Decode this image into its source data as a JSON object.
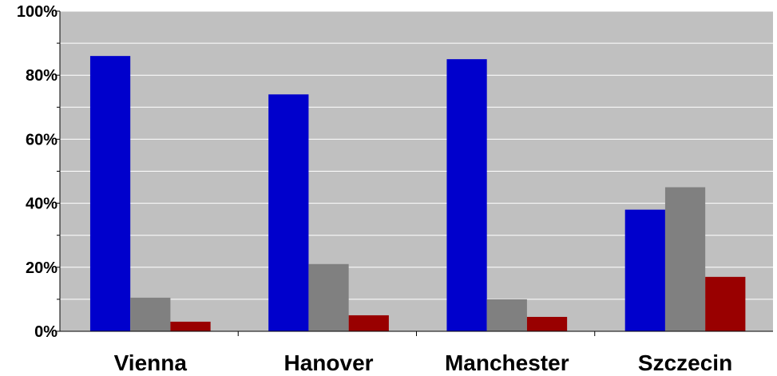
{
  "chart_data": {
    "type": "bar",
    "categories": [
      "Vienna",
      "Hanover",
      "Manchester",
      "Szczecin"
    ],
    "series": [
      {
        "color": "#0000cc",
        "values": [
          86,
          74,
          85,
          38
        ]
      },
      {
        "color": "#808080",
        "values": [
          10.5,
          21,
          10,
          45
        ]
      },
      {
        "color": "#990000",
        "values": [
          3,
          5,
          4.5,
          17
        ]
      }
    ],
    "y_tick_labels": [
      "0%",
      "20%",
      "40%",
      "60%",
      "80%",
      "100%"
    ],
    "y_ticks": [
      0,
      20,
      40,
      60,
      80,
      100
    ],
    "ylim": [
      0,
      100
    ],
    "grid": true,
    "plot_background": "#c0c0c0",
    "title": "",
    "xlabel": "",
    "ylabel": ""
  }
}
